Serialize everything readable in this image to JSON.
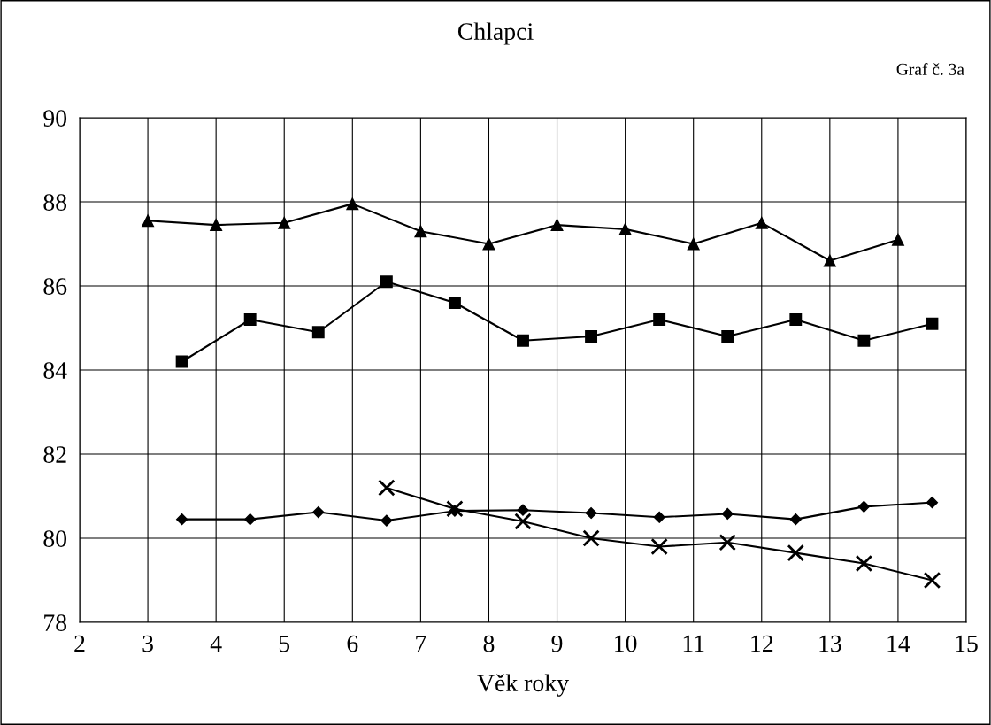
{
  "chart_data": {
    "type": "line",
    "title": "Chlapci",
    "xlabel": "Věk roky",
    "annotations": [
      "Graf č. 3a"
    ],
    "xlim": [
      2,
      15
    ],
    "xticks": [
      2,
      3,
      4,
      5,
      6,
      7,
      8,
      9,
      10,
      11,
      12,
      13,
      14,
      15
    ],
    "ylim": [
      78,
      90
    ],
    "yticks": [
      78,
      80,
      82,
      84,
      86,
      88,
      90
    ],
    "grid": true,
    "legend": false,
    "series": [
      {
        "color": "#000000",
        "marker": "triangle",
        "x": [
          3,
          4,
          5,
          6,
          7,
          8,
          9,
          10,
          11,
          12,
          13,
          14
        ],
        "values": [
          87.55,
          87.45,
          87.5,
          87.95,
          87.3,
          87.0,
          87.45,
          87.35,
          87.0,
          87.5,
          86.6,
          87.1
        ]
      },
      {
        "color": "#000000",
        "marker": "square",
        "x": [
          3.5,
          4.5,
          5.5,
          6.5,
          7.5,
          8.5,
          9.5,
          10.5,
          11.5,
          12.5,
          13.5,
          14.5
        ],
        "values": [
          84.2,
          85.2,
          84.9,
          86.1,
          85.6,
          84.7,
          84.8,
          85.2,
          84.8,
          85.2,
          84.7,
          85.1
        ]
      },
      {
        "color": "#000000",
        "marker": "diamond",
        "x": [
          3.5,
          4.5,
          5.5,
          6.5,
          7.5,
          8.5,
          9.5,
          10.5,
          11.5,
          12.5,
          13.5,
          14.5
        ],
        "values": [
          80.45,
          80.45,
          80.62,
          80.42,
          80.65,
          80.67,
          80.6,
          80.5,
          80.58,
          80.45,
          80.75,
          80.85
        ]
      },
      {
        "color": "#000000",
        "marker": "cross",
        "x": [
          6.5,
          7.5,
          8.5,
          9.5,
          10.5,
          11.5,
          12.5,
          13.5,
          14.5
        ],
        "values": [
          81.2,
          80.7,
          80.4,
          80.0,
          79.8,
          79.9,
          79.65,
          79.4,
          79.0
        ]
      }
    ]
  }
}
